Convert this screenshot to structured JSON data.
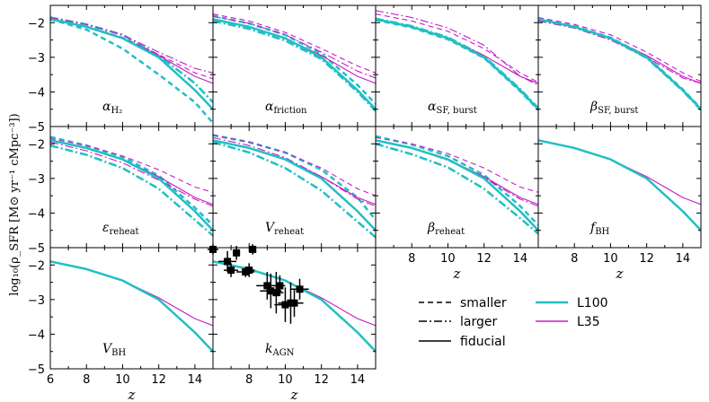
{
  "chart_data": {
    "type": "line",
    "ylabel": "log₁₀(ρ_SFR [M⊙ yr⁻¹ cMpc⁻³])",
    "xlabel": "z",
    "xlim": [
      6,
      15
    ],
    "ylim": [
      -5,
      -1.5
    ],
    "x_ticks": [
      "6",
      "8",
      "10",
      "12",
      "14"
    ],
    "y_ticks": [
      "−2",
      "−3",
      "−4",
      "−5"
    ],
    "colors": {
      "L100": "#22bfc4",
      "L35": "#c51bc5",
      "data": "#000000"
    },
    "legend": {
      "styles": [
        {
          "name": "smaller",
          "dash": "dashed"
        },
        {
          "name": "larger",
          "dash": "dashdot"
        },
        {
          "name": "fiducial",
          "dash": "solid"
        }
      ],
      "sims": [
        {
          "name": "L100",
          "color": "L100"
        },
        {
          "name": "L35",
          "color": "L35"
        }
      ]
    },
    "fiducial": {
      "x": [
        6,
        8,
        10,
        12,
        14,
        15
      ],
      "L100": [
        -1.9,
        -2.12,
        -2.45,
        -3.0,
        -3.95,
        -4.5
      ],
      "L35": [
        -1.9,
        -2.12,
        -2.45,
        -2.95,
        -3.55,
        -3.75
      ]
    },
    "panels": [
      {
        "row": 0,
        "col": 0,
        "label": "α",
        "sub": "H₂",
        "variants": [
          {
            "sim": "L100",
            "dash": "dashed",
            "y": [
              -1.9,
              -2.2,
              -2.75,
              -3.5,
              -4.3,
              -4.9
            ]
          },
          {
            "sim": "L100",
            "dash": "dashdot",
            "y": [
              -1.85,
              -2.05,
              -2.35,
              -2.95,
              -3.75,
              -4.3
            ]
          },
          {
            "sim": "L35",
            "dash": "dashed",
            "y": [
              -1.88,
              -2.1,
              -2.42,
              -2.92,
              -3.45,
              -3.62
            ]
          },
          {
            "sim": "L35",
            "dash": "dashdot",
            "y": [
              -1.85,
              -2.05,
              -2.35,
              -2.85,
              -3.32,
              -3.45
            ]
          }
        ]
      },
      {
        "row": 0,
        "col": 1,
        "label": "α",
        "sub": "friction",
        "variants": [
          {
            "sim": "L100",
            "dash": "dashed",
            "y": [
              -1.8,
              -2.02,
              -2.35,
              -2.9,
              -3.8,
              -4.35
            ]
          },
          {
            "sim": "L100",
            "dash": "dashdot",
            "y": [
              -1.95,
              -2.18,
              -2.52,
              -3.05,
              -4.0,
              -4.55
            ]
          },
          {
            "sim": "L35",
            "dash": "dashed",
            "y": [
              -1.75,
              -1.95,
              -2.28,
              -2.75,
              -3.25,
              -3.45
            ]
          },
          {
            "sim": "L35",
            "dash": "dashdot",
            "y": [
              -1.82,
              -2.02,
              -2.35,
              -2.85,
              -3.4,
              -3.6
            ]
          }
        ]
      },
      {
        "row": 0,
        "col": 2,
        "label": "α",
        "sub": "SF, burst",
        "variants": [
          {
            "sim": "L100",
            "dash": "dashed",
            "y": [
              -1.92,
              -2.14,
              -2.48,
              -3.02,
              -3.98,
              -4.52
            ]
          },
          {
            "sim": "L100",
            "dash": "dashdot",
            "y": [
              -1.88,
              -2.1,
              -2.42,
              -2.97,
              -3.92,
              -4.47
            ]
          },
          {
            "sim": "L35",
            "dash": "dashed",
            "y": [
              -1.75,
              -1.95,
              -2.25,
              -2.75,
              -3.45,
              -3.72
            ]
          },
          {
            "sim": "L35",
            "dash": "dashdot",
            "y": [
              -1.65,
              -1.85,
              -2.15,
              -2.65,
              -3.55,
              -3.8
            ]
          }
        ]
      },
      {
        "row": 0,
        "col": 3,
        "label": "β",
        "sub": "SF, burst",
        "variants": [
          {
            "sim": "L100",
            "dash": "dashed",
            "y": [
              -1.88,
              -2.1,
              -2.43,
              -2.98,
              -3.93,
              -4.48
            ]
          },
          {
            "sim": "L100",
            "dash": "dashdot",
            "y": [
              -1.92,
              -2.14,
              -2.47,
              -3.02,
              -3.97,
              -4.52
            ]
          },
          {
            "sim": "L35",
            "dash": "dashed",
            "y": [
              -1.85,
              -2.05,
              -2.35,
              -2.85,
              -3.45,
              -3.7
            ]
          },
          {
            "sim": "L35",
            "dash": "dashdot",
            "y": [
              -1.95,
              -2.15,
              -2.5,
              -3.0,
              -3.6,
              -3.75
            ]
          }
        ]
      },
      {
        "row": 1,
        "col": 0,
        "label": "ε",
        "sub": "reheat",
        "variants": [
          {
            "sim": "L100",
            "dash": "dashed",
            "y": [
              -1.8,
              -2.05,
              -2.38,
              -2.92,
              -3.85,
              -4.35
            ]
          },
          {
            "sim": "L100",
            "dash": "dashdot",
            "y": [
              -2.05,
              -2.32,
              -2.7,
              -3.3,
              -4.2,
              -4.65
            ]
          },
          {
            "sim": "L35",
            "dash": "dashed",
            "y": [
              -1.85,
              -2.05,
              -2.35,
              -2.75,
              -3.25,
              -3.4
            ]
          },
          {
            "sim": "L35",
            "dash": "dashdot",
            "y": [
              -1.95,
              -2.2,
              -2.55,
              -3.05,
              -3.6,
              -3.8
            ]
          }
        ]
      },
      {
        "row": 1,
        "col": 1,
        "label": "V",
        "sub": "reheat",
        "variants": [
          {
            "sim": "L100",
            "dash": "dashed",
            "y": [
              -1.75,
              -1.95,
              -2.25,
              -2.75,
              -3.55,
              -4.2
            ]
          },
          {
            "sim": "L100",
            "dash": "dashdot",
            "y": [
              -1.95,
              -2.25,
              -2.7,
              -3.35,
              -4.25,
              -4.7
            ]
          },
          {
            "sim": "L35",
            "dash": "dashed",
            "y": [
              -1.75,
              -1.95,
              -2.25,
              -2.7,
              -3.3,
              -3.5
            ]
          },
          {
            "sim": "L35",
            "dash": "dashdot",
            "y": [
              -1.82,
              -2.05,
              -2.4,
              -2.95,
              -3.6,
              -3.8
            ]
          }
        ]
      },
      {
        "row": 1,
        "col": 2,
        "label": "β",
        "sub": "reheat",
        "variants": [
          {
            "sim": "L100",
            "dash": "dashed",
            "y": [
              -1.78,
              -2.02,
              -2.35,
              -2.9,
              -3.8,
              -4.35
            ]
          },
          {
            "sim": "L100",
            "dash": "dashdot",
            "y": [
              -2.0,
              -2.3,
              -2.68,
              -3.3,
              -4.15,
              -4.6
            ]
          },
          {
            "sim": "L35",
            "dash": "dashed",
            "y": [
              -1.82,
              -2.0,
              -2.28,
              -2.7,
              -3.25,
              -3.4
            ]
          },
          {
            "sim": "L35",
            "dash": "dashdot",
            "y": [
              -1.9,
              -2.12,
              -2.48,
              -2.98,
              -3.6,
              -3.8
            ]
          }
        ]
      },
      {
        "row": 1,
        "col": 3,
        "label": "f",
        "sub": "BH",
        "variants": []
      },
      {
        "row": 2,
        "col": 0,
        "label": "V",
        "sub": "BH",
        "variants": []
      },
      {
        "row": 2,
        "col": 1,
        "label": "k",
        "sub": "AGN",
        "variants": [],
        "observations": [
          {
            "x": 6.0,
            "y": -1.55,
            "xerr": 0.3,
            "yerr": 0.15
          },
          {
            "x": 6.8,
            "y": -1.9,
            "xerr": 0.5,
            "yerr": 0.3
          },
          {
            "x": 7.0,
            "y": -2.15,
            "xerr": 0.4,
            "yerr": 0.2
          },
          {
            "x": 7.3,
            "y": -1.65,
            "xerr": 0.2,
            "yerr": 0.2
          },
          {
            "x": 7.8,
            "y": -2.2,
            "xerr": 0.5,
            "yerr": 0.15
          },
          {
            "x": 8.0,
            "y": -2.15,
            "xerr": 0.3,
            "yerr": 0.2
          },
          {
            "x": 8.2,
            "y": -1.55,
            "xerr": 0.15,
            "yerr": 0.15
          },
          {
            "x": 9.0,
            "y": -2.6,
            "xerr": 0.6,
            "yerr": 0.4
          },
          {
            "x": 9.2,
            "y": -2.75,
            "xerr": 0.6,
            "yerr": 0.5
          },
          {
            "x": 9.5,
            "y": -2.8,
            "xerr": 0.4,
            "yerr": 0.6
          },
          {
            "x": 9.7,
            "y": -2.6,
            "xerr": 0.3,
            "yerr": 0.3
          },
          {
            "x": 10.0,
            "y": -3.15,
            "xerr": 0.6,
            "yerr": 0.5
          },
          {
            "x": 10.3,
            "y": -3.1,
            "xerr": 0.7,
            "yerr": 0.6
          },
          {
            "x": 10.5,
            "y": -3.1,
            "xerr": 0.4,
            "yerr": 0.4
          },
          {
            "x": 10.8,
            "y": -2.7,
            "xerr": 0.5,
            "yerr": 0.3
          }
        ]
      }
    ]
  }
}
